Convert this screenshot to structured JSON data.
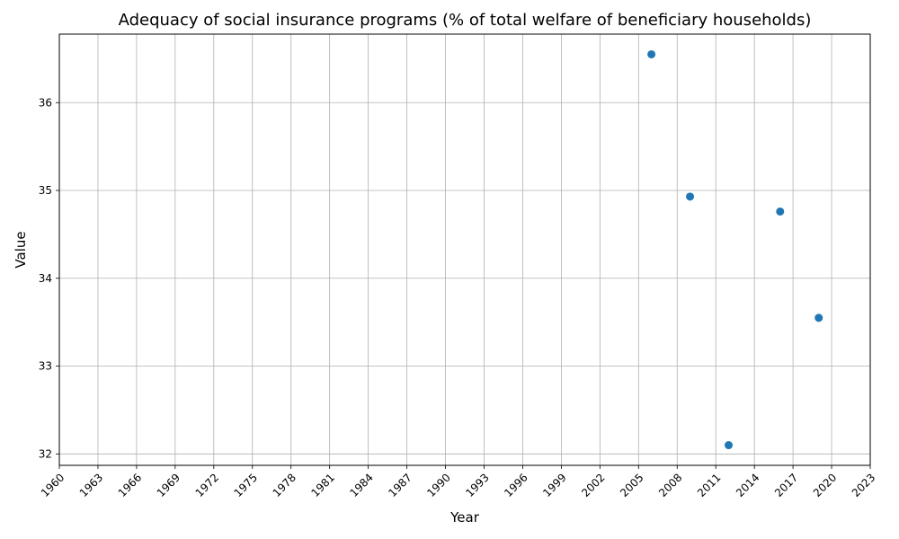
{
  "chart_data": {
    "type": "scatter",
    "title": "Adequacy of social insurance programs (% of total welfare of beneficiary households)",
    "xlabel": "Year",
    "ylabel": "Value",
    "xlim": [
      1960,
      2023
    ],
    "ylim": [
      31.87,
      36.78
    ],
    "x_ticks": [
      1960,
      1963,
      1966,
      1969,
      1972,
      1975,
      1978,
      1981,
      1984,
      1987,
      1990,
      1993,
      1996,
      1999,
      2002,
      2005,
      2008,
      2011,
      2014,
      2017,
      2020,
      2023
    ],
    "y_ticks": [
      32,
      33,
      34,
      35,
      36
    ],
    "grid": true,
    "color": "#1f77b4",
    "series": [
      {
        "x": [
          2006,
          2009,
          2012,
          2016,
          2019
        ],
        "y": [
          36.55,
          34.93,
          32.1,
          34.76,
          33.55
        ]
      }
    ]
  }
}
